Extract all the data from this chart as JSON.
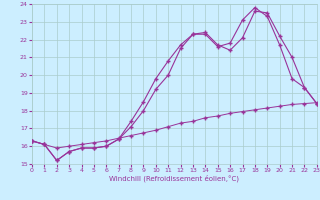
{
  "xlabel": "Windchill (Refroidissement éolien,°C)",
  "bg_color": "#cceeff",
  "grid_color": "#aacccc",
  "line_color": "#993399",
  "xlim": [
    0,
    23
  ],
  "ylim": [
    15,
    24
  ],
  "xticks": [
    0,
    1,
    2,
    3,
    4,
    5,
    6,
    7,
    8,
    9,
    10,
    11,
    12,
    13,
    14,
    15,
    16,
    17,
    18,
    19,
    20,
    21,
    22,
    23
  ],
  "yticks": [
    15,
    16,
    17,
    18,
    19,
    20,
    21,
    22,
    23,
    24
  ],
  "line1_x": [
    0,
    1,
    2,
    3,
    4,
    5,
    6,
    7,
    8,
    9,
    10,
    11,
    12,
    13,
    14,
    15,
    16,
    17,
    18,
    19,
    20,
    21,
    22,
    23
  ],
  "line1_y": [
    16.3,
    16.1,
    15.2,
    15.7,
    15.9,
    15.9,
    16.0,
    16.4,
    17.1,
    18.0,
    19.2,
    20.0,
    21.5,
    22.3,
    22.4,
    21.7,
    21.4,
    22.1,
    23.6,
    23.5,
    22.2,
    21.0,
    19.3,
    18.4
  ],
  "line2_x": [
    0,
    1,
    2,
    3,
    4,
    5,
    6,
    7,
    8,
    9,
    10,
    11,
    12,
    13,
    14,
    15,
    16,
    17,
    18,
    19,
    20,
    21,
    22,
    23
  ],
  "line2_y": [
    16.3,
    16.1,
    15.2,
    15.7,
    15.9,
    15.9,
    16.0,
    16.4,
    17.4,
    18.5,
    19.8,
    20.8,
    21.7,
    22.3,
    22.3,
    21.6,
    21.8,
    23.1,
    23.8,
    23.3,
    21.7,
    19.8,
    19.3,
    18.4
  ],
  "line3_x": [
    0,
    1,
    2,
    3,
    4,
    5,
    6,
    7,
    8,
    9,
    10,
    11,
    12,
    13,
    14,
    15,
    16,
    17,
    18,
    19,
    20,
    21,
    22,
    23
  ],
  "line3_y": [
    16.3,
    16.1,
    15.9,
    16.0,
    16.1,
    16.2,
    16.3,
    16.45,
    16.6,
    16.75,
    16.9,
    17.1,
    17.3,
    17.4,
    17.6,
    17.7,
    17.85,
    17.95,
    18.05,
    18.15,
    18.25,
    18.35,
    18.4,
    18.45
  ]
}
